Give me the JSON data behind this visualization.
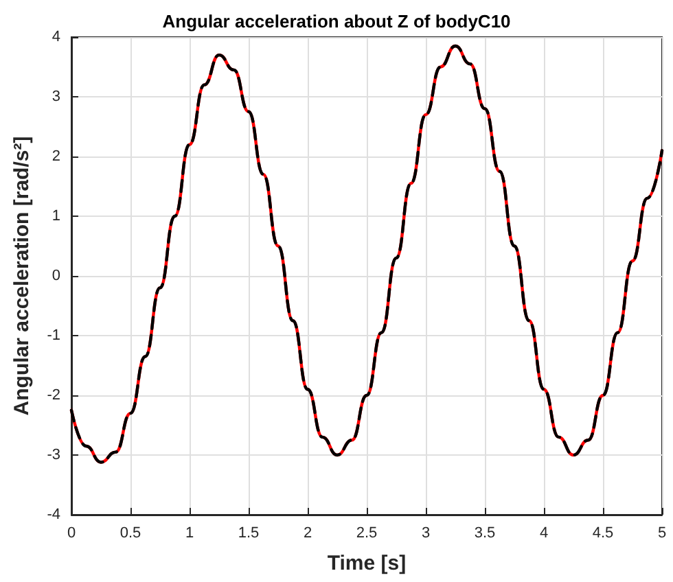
{
  "chart_data": {
    "type": "line",
    "title": "Angular acceleration about Z of bodyC10",
    "xlabel": "Time [s]",
    "ylabel": "Angular acceleration [rad/s²]",
    "x": [
      0,
      0.125,
      0.25,
      0.375,
      0.5,
      0.625,
      0.75,
      0.875,
      1,
      1.125,
      1.25,
      1.375,
      1.5,
      1.625,
      1.75,
      1.875,
      2,
      2.125,
      2.25,
      2.375,
      2.5,
      2.625,
      2.75,
      2.875,
      3,
      3.125,
      3.25,
      3.375,
      3.5,
      3.625,
      3.75,
      3.875,
      4,
      4.125,
      4.25,
      4.375,
      4.5,
      4.625,
      4.75,
      4.875,
      5
    ],
    "series": [
      {
        "color": "#ff0000",
        "line_style": "solid",
        "values": [
          -2.25,
          -2.85,
          -3.12,
          -2.95,
          -2.3,
          -1.35,
          -0.2,
          1.0,
          2.2,
          3.2,
          3.7,
          3.45,
          2.75,
          1.7,
          0.5,
          -0.75,
          -1.9,
          -2.7,
          -3.0,
          -2.75,
          -2.0,
          -0.95,
          0.3,
          1.55,
          2.7,
          3.5,
          3.85,
          3.55,
          2.8,
          1.75,
          0.5,
          -0.75,
          -1.9,
          -2.7,
          -3.0,
          -2.75,
          -2.0,
          -0.95,
          0.25,
          1.3,
          2.1
        ]
      },
      {
        "color": "#000000",
        "line_style": "dashed",
        "values": [
          -2.25,
          -2.85,
          -3.12,
          -2.95,
          -2.3,
          -1.35,
          -0.2,
          1.0,
          2.2,
          3.2,
          3.7,
          3.45,
          2.75,
          1.7,
          0.5,
          -0.75,
          -1.9,
          -2.7,
          -3.0,
          -2.75,
          -2.0,
          -0.95,
          0.3,
          1.55,
          2.7,
          3.5,
          3.85,
          3.55,
          2.8,
          1.75,
          0.5,
          -0.75,
          -1.9,
          -2.7,
          -3.0,
          -2.75,
          -2.0,
          -0.95,
          0.25,
          1.3,
          2.1
        ]
      }
    ],
    "xlim": [
      0,
      5
    ],
    "xticks": [
      0,
      0.5,
      1,
      1.5,
      2,
      2.5,
      3,
      3.5,
      4,
      4.5,
      5
    ],
    "ylim": [
      -4,
      4
    ],
    "yticks": [
      -4,
      -3,
      -2,
      -1,
      0,
      1,
      2,
      3,
      4
    ],
    "grid": true,
    "marker": "none"
  }
}
